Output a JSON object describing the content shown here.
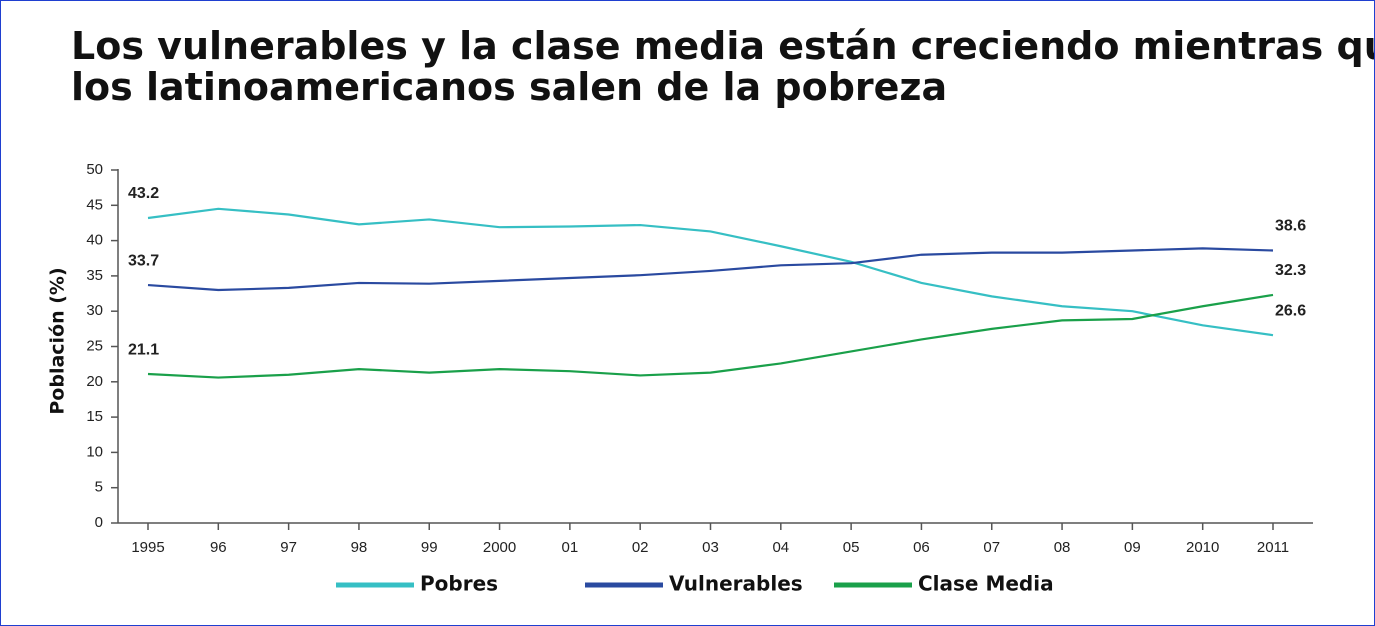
{
  "chart_data": {
    "type": "line",
    "title": [
      "Los vulnerables y la clase media están creciendo mientras que",
      "los latinoamericanos salen de la pobreza"
    ],
    "y_label": "Población (%)",
    "categories": [
      "1995",
      "96",
      "97",
      "98",
      "99",
      "2000",
      "01",
      "02",
      "03",
      "04",
      "05",
      "06",
      "07",
      "08",
      "09",
      "2010",
      "2011"
    ],
    "series": [
      {
        "name": "Pobres",
        "color": "#36bfc4",
        "values": [
          43.2,
          44.5,
          43.7,
          42.3,
          43.0,
          41.9,
          42.0,
          42.2,
          41.3,
          39.2,
          37.0,
          34.0,
          32.1,
          30.7,
          30.0,
          28.0,
          26.6
        ]
      },
      {
        "name": "Vulnerables",
        "color": "#2a4aa0",
        "values": [
          33.7,
          33.0,
          33.3,
          34.0,
          33.9,
          34.3,
          34.7,
          35.1,
          35.7,
          36.5,
          36.8,
          38.0,
          38.3,
          38.3,
          38.6,
          38.9,
          38.6
        ]
      },
      {
        "name": "Clase Media",
        "color": "#1aa04a",
        "values": [
          21.1,
          20.6,
          21.0,
          21.8,
          21.3,
          21.8,
          21.5,
          20.9,
          21.3,
          22.6,
          24.3,
          26.0,
          27.5,
          28.7,
          28.9,
          30.7,
          32.3
        ]
      }
    ],
    "ylim": [
      0,
      50
    ],
    "yticks": [
      0,
      5,
      10,
      15,
      20,
      25,
      30,
      35,
      40,
      45,
      50
    ],
    "grid": false,
    "legend": "bottom"
  }
}
